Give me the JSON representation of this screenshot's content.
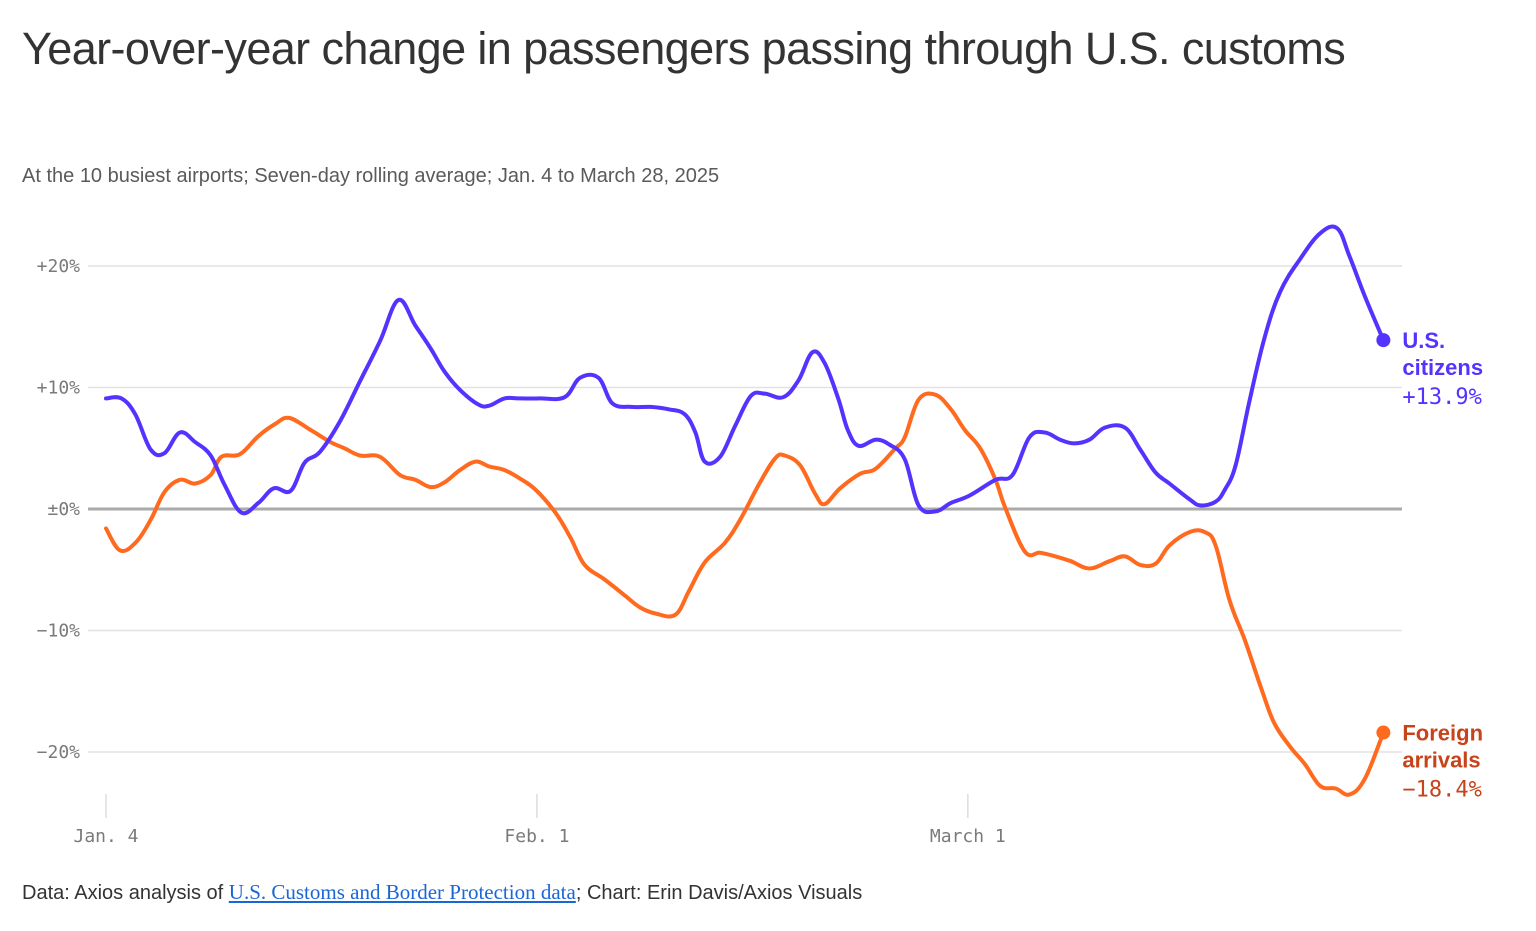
{
  "header": {
    "title": "Year-over-year change in passengers passing through U.S. customs",
    "subtitle": "At the 10 busiest airports; Seven-day rolling average; Jan. 4 to March 28, 2025"
  },
  "footer": {
    "prefix": "Data: Axios analysis of ",
    "link_text": "U.S. Customs and Border Protection data",
    "suffix": "; Chart: Erin Davis/Axios Visuals"
  },
  "colors": {
    "us_citizens": "#5433ff",
    "foreign": "#ff6a1f",
    "foreign_label": "#c7431a",
    "zero_line": "#aaaaaa",
    "grid": "#e2e2e2"
  },
  "chart_data": {
    "type": "line",
    "title": "Year-over-year change in passengers passing through U.S. customs",
    "subtitle": "At the 10 busiest airports; Seven-day rolling average; Jan. 4 to March 28, 2025",
    "xlabel": "",
    "ylabel": "",
    "x_unit": "days since Jan. 4, 2025",
    "xlim": [
      0,
      83
    ],
    "ylim": [
      -25,
      23
    ],
    "grid": true,
    "legend": "direct labels at line ends (right)",
    "y_ticks": [
      {
        "value": 20,
        "label": "+20%"
      },
      {
        "value": 10,
        "label": "+10%"
      },
      {
        "value": 0,
        "label": "±0%"
      },
      {
        "value": -10,
        "label": "−10%"
      },
      {
        "value": -20,
        "label": "−20%"
      }
    ],
    "x_ticks": [
      {
        "value": 0,
        "label": "Jan. 4"
      },
      {
        "value": 28,
        "label": "Feb. 1"
      },
      {
        "value": 56,
        "label": "March 1"
      }
    ],
    "series": [
      {
        "name": "U.S. citizens",
        "label_lines": [
          "U.S.",
          "citizens"
        ],
        "end_label": "+13.9%",
        "end_value": 13.9,
        "points": [
          [
            0,
            9.1
          ],
          [
            1.0,
            9.1
          ],
          [
            1.9,
            7.8
          ],
          [
            2.9,
            4.9
          ],
          [
            3.8,
            4.6
          ],
          [
            4.8,
            6.3
          ],
          [
            5.8,
            5.5
          ],
          [
            6.8,
            4.4
          ],
          [
            7.7,
            2.0
          ],
          [
            8.8,
            -0.3
          ],
          [
            9.9,
            0.5
          ],
          [
            10.9,
            1.7
          ],
          [
            12.0,
            1.5
          ],
          [
            12.9,
            3.8
          ],
          [
            13.9,
            4.7
          ],
          [
            15.2,
            7.2
          ],
          [
            16.5,
            10.5
          ],
          [
            17.8,
            13.8
          ],
          [
            19.0,
            17.2
          ],
          [
            20.1,
            15.1
          ],
          [
            21.1,
            13.2
          ],
          [
            22.0,
            11.3
          ],
          [
            23.0,
            9.8
          ],
          [
            24.2,
            8.6
          ],
          [
            24.9,
            8.5
          ],
          [
            25.9,
            9.1
          ],
          [
            26.9,
            9.1
          ],
          [
            28.2,
            9.1
          ],
          [
            29.8,
            9.2
          ],
          [
            30.8,
            10.8
          ],
          [
            32.0,
            10.8
          ],
          [
            32.9,
            8.7
          ],
          [
            34.1,
            8.4
          ],
          [
            35.4,
            8.4
          ],
          [
            36.6,
            8.2
          ],
          [
            37.6,
            7.8
          ],
          [
            38.3,
            6.3
          ],
          [
            38.9,
            3.9
          ],
          [
            39.9,
            4.3
          ],
          [
            40.9,
            6.9
          ],
          [
            41.9,
            9.3
          ],
          [
            42.8,
            9.5
          ],
          [
            44.0,
            9.2
          ],
          [
            45.0,
            10.6
          ],
          [
            45.9,
            12.9
          ],
          [
            46.7,
            12.0
          ],
          [
            47.6,
            9.0
          ],
          [
            48.2,
            6.5
          ],
          [
            48.9,
            5.2
          ],
          [
            50.0,
            5.7
          ],
          [
            50.9,
            5.3
          ],
          [
            51.9,
            4.1
          ],
          [
            52.8,
            0.3
          ],
          [
            53.9,
            -0.2
          ],
          [
            54.9,
            0.5
          ],
          [
            56.1,
            1.1
          ],
          [
            57.8,
            2.4
          ],
          [
            58.9,
            2.8
          ],
          [
            60.0,
            5.9
          ],
          [
            61.0,
            6.3
          ],
          [
            62.0,
            5.7
          ],
          [
            62.9,
            5.4
          ],
          [
            63.9,
            5.7
          ],
          [
            64.9,
            6.7
          ],
          [
            66.2,
            6.7
          ],
          [
            67.2,
            4.9
          ],
          [
            68.2,
            3.0
          ],
          [
            69.1,
            2.1
          ],
          [
            70.4,
            0.8
          ],
          [
            71.1,
            0.3
          ],
          [
            72.1,
            0.6
          ],
          [
            72.7,
            1.6
          ],
          [
            73.4,
            3.6
          ],
          [
            74.3,
            8.9
          ],
          [
            75.3,
            14.2
          ],
          [
            76.3,
            17.9
          ],
          [
            77.6,
            20.6
          ],
          [
            78.9,
            22.7
          ],
          [
            80.0,
            23.1
          ],
          [
            80.8,
            20.8
          ],
          [
            81.8,
            17.5
          ],
          [
            83,
            13.9
          ]
        ]
      },
      {
        "name": "Foreign arrivals",
        "label_lines": [
          "Foreign",
          "arrivals"
        ],
        "end_label": "−18.4%",
        "end_value": -18.4,
        "points": [
          [
            0,
            -1.6
          ],
          [
            0.9,
            -3.4
          ],
          [
            1.9,
            -2.8
          ],
          [
            2.9,
            -0.9
          ],
          [
            3.8,
            1.4
          ],
          [
            4.8,
            2.4
          ],
          [
            5.8,
            2.1
          ],
          [
            6.8,
            2.8
          ],
          [
            7.5,
            4.3
          ],
          [
            8.7,
            4.5
          ],
          [
            9.9,
            6.0
          ],
          [
            11.0,
            7.0
          ],
          [
            11.9,
            7.5
          ],
          [
            13.3,
            6.5
          ],
          [
            14.6,
            5.5
          ],
          [
            15.5,
            5.0
          ],
          [
            16.5,
            4.4
          ],
          [
            17.8,
            4.3
          ],
          [
            19.1,
            2.8
          ],
          [
            20.1,
            2.4
          ],
          [
            21.1,
            1.8
          ],
          [
            22.0,
            2.2
          ],
          [
            23.0,
            3.2
          ],
          [
            24.0,
            3.9
          ],
          [
            24.9,
            3.5
          ],
          [
            25.9,
            3.2
          ],
          [
            26.9,
            2.5
          ],
          [
            27.9,
            1.6
          ],
          [
            29.2,
            -0.3
          ],
          [
            30.2,
            -2.4
          ],
          [
            31.1,
            -4.6
          ],
          [
            32.4,
            -5.8
          ],
          [
            33.7,
            -7.1
          ],
          [
            34.7,
            -8.1
          ],
          [
            35.7,
            -8.6
          ],
          [
            37.0,
            -8.7
          ],
          [
            37.9,
            -6.7
          ],
          [
            38.9,
            -4.4
          ],
          [
            40.2,
            -2.8
          ],
          [
            41.2,
            -0.9
          ],
          [
            42.5,
            2.2
          ],
          [
            43.5,
            4.2
          ],
          [
            44.1,
            4.4
          ],
          [
            45.1,
            3.6
          ],
          [
            46.1,
            1.2
          ],
          [
            46.7,
            0.4
          ],
          [
            47.7,
            1.7
          ],
          [
            49.0,
            2.9
          ],
          [
            50.0,
            3.3
          ],
          [
            51.3,
            5.0
          ],
          [
            51.9,
            5.9
          ],
          [
            52.8,
            9.0
          ],
          [
            53.9,
            9.4
          ],
          [
            54.9,
            8.2
          ],
          [
            55.8,
            6.5
          ],
          [
            56.8,
            5.0
          ],
          [
            57.8,
            2.4
          ],
          [
            58.4,
            0.2
          ],
          [
            59.7,
            -3.5
          ],
          [
            60.7,
            -3.6
          ],
          [
            61.7,
            -3.9
          ],
          [
            62.7,
            -4.3
          ],
          [
            63.9,
            -4.9
          ],
          [
            65.2,
            -4.3
          ],
          [
            66.2,
            -3.9
          ],
          [
            67.2,
            -4.6
          ],
          [
            68.2,
            -4.5
          ],
          [
            69.1,
            -3.0
          ],
          [
            70.4,
            -1.9
          ],
          [
            71.4,
            -1.9
          ],
          [
            72.1,
            -3.0
          ],
          [
            73.0,
            -7.5
          ],
          [
            74.0,
            -10.8
          ],
          [
            75.1,
            -14.9
          ],
          [
            75.9,
            -17.6
          ],
          [
            76.9,
            -19.5
          ],
          [
            77.9,
            -21.0
          ],
          [
            78.9,
            -22.8
          ],
          [
            79.9,
            -23.0
          ],
          [
            80.8,
            -23.5
          ],
          [
            81.8,
            -22.2
          ],
          [
            83,
            -18.4
          ]
        ]
      }
    ]
  }
}
